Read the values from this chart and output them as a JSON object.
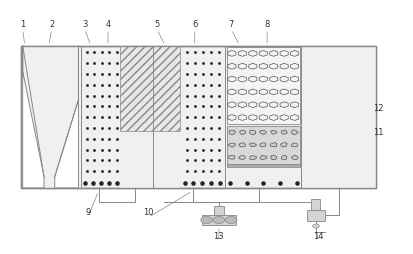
{
  "fig_w": 4.13,
  "fig_h": 2.54,
  "dpi": 100,
  "lc": "#888888",
  "lw": 0.7,
  "bg": "#ffffff",
  "ox": 0.05,
  "oy": 0.26,
  "ow": 0.86,
  "oh": 0.56,
  "s1w": 0.145,
  "s2w": 0.175,
  "s3w": 0.175,
  "s4w": 0.185,
  "font_size": 6.0,
  "label_color": "#333333"
}
